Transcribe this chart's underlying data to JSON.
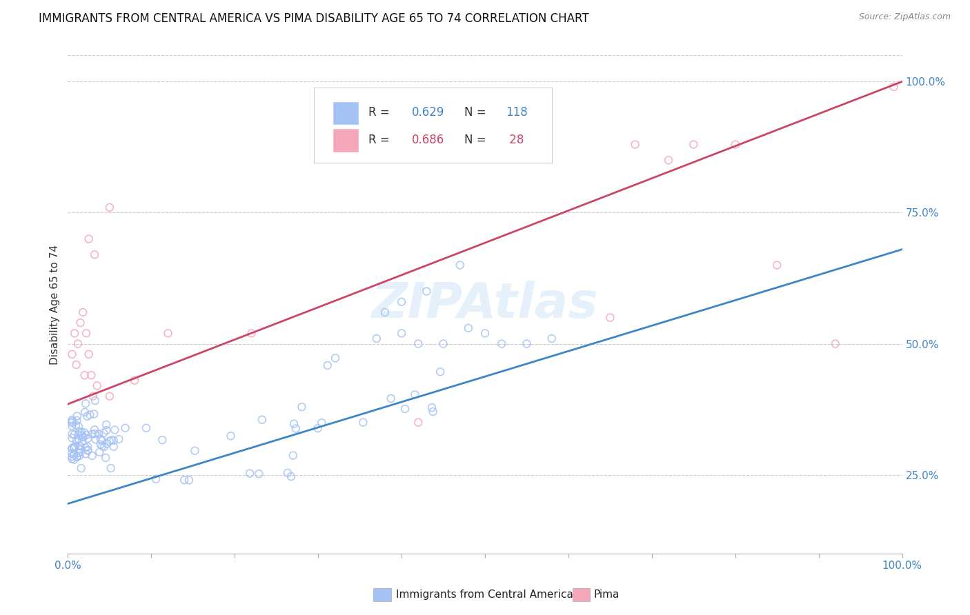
{
  "title": "IMMIGRANTS FROM CENTRAL AMERICA VS PIMA DISABILITY AGE 65 TO 74 CORRELATION CHART",
  "source": "Source: ZipAtlas.com",
  "ylabel": "Disability Age 65 to 74",
  "xlim": [
    0.0,
    1.0
  ],
  "ylim": [
    0.1,
    1.05
  ],
  "ytick_labels": [
    "25.0%",
    "50.0%",
    "75.0%",
    "100.0%"
  ],
  "ytick_positions": [
    0.25,
    0.5,
    0.75,
    1.0
  ],
  "blue_color": "#a4c2f4",
  "pink_color": "#f4a7b9",
  "blue_line_color": "#3d85c8",
  "pink_line_color": "#cc4466",
  "watermark": "ZIPAtlas",
  "legend_R_blue": "0.629",
  "legend_N_blue": "118",
  "legend_R_pink": "0.686",
  "legend_N_pink": "28",
  "blue_line_y_start": 0.195,
  "blue_line_y_end": 0.68,
  "pink_line_y_start": 0.385,
  "pink_line_y_end": 1.0,
  "grid_color": "#cccccc",
  "background_color": "#ffffff",
  "title_fontsize": 12,
  "axis_label_fontsize": 11,
  "tick_fontsize": 11,
  "scatter_size": 60,
  "scatter_lw": 1.2,
  "line_width": 2.0
}
